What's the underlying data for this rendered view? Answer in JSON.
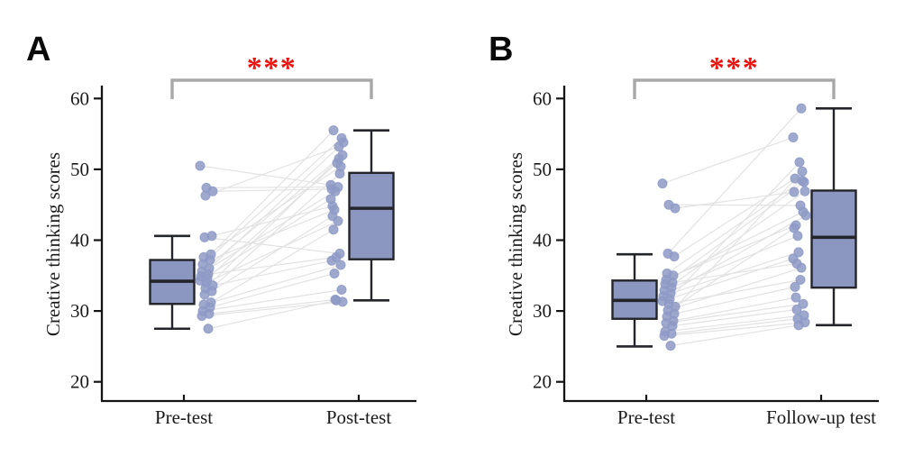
{
  "figure": {
    "background": "#ffffff",
    "panels": [
      {
        "label": "A"
      },
      {
        "label": "B"
      }
    ]
  },
  "colors": {
    "box_fill": "#8b97c1",
    "box_stroke": "#23252b",
    "median_stroke": "#23252b",
    "point_fill": "#8e9ac6",
    "pair_line": "#e2e2e2",
    "bracket": "#a8a8a8",
    "significance": "#ea1510",
    "axis": "#141414",
    "text": "#1a1a1a"
  },
  "chart_data": [
    {
      "type": "box",
      "panel": "A",
      "title": "",
      "ylabel": "Creative thinking scores",
      "xlabel": "",
      "ylim": [
        20,
        60
      ],
      "yticks": [
        20,
        30,
        40,
        50,
        60
      ],
      "grid": false,
      "legend": "none",
      "categories": [
        "Pre-test",
        "Post-test"
      ],
      "significance": {
        "label": "***",
        "between": [
          "Pre-test",
          "Post-test"
        ]
      },
      "boxes": [
        {
          "category": "Pre-test",
          "whisker_low": 27.5,
          "q1": 31.0,
          "median": 34.2,
          "q3": 37.2,
          "whisker_high": 40.6
        },
        {
          "category": "Post-test",
          "whisker_low": 31.5,
          "q1": 37.3,
          "median": 44.5,
          "q3": 49.5,
          "whisker_high": 55.5
        }
      ],
      "paired_points": [
        [
          50.5,
          47.8
        ],
        [
          47.4,
          47.5
        ],
        [
          46.9,
          47.2
        ],
        [
          46.3,
          53.2
        ],
        [
          40.6,
          44.8
        ],
        [
          40.4,
          38.1
        ],
        [
          38.0,
          55.5
        ],
        [
          37.6,
          50.4
        ],
        [
          37.2,
          44.3
        ],
        [
          36.6,
          54.4
        ],
        [
          36.0,
          46.9
        ],
        [
          35.6,
          52.0
        ],
        [
          35.2,
          37.6
        ],
        [
          34.9,
          53.8
        ],
        [
          34.6,
          50.9
        ],
        [
          34.3,
          45.8
        ],
        [
          34.0,
          42.7
        ],
        [
          33.6,
          37.1
        ],
        [
          33.2,
          51.5
        ],
        [
          32.8,
          43.4
        ],
        [
          32.3,
          49.4
        ],
        [
          31.2,
          41.5
        ],
        [
          30.9,
          36.5
        ],
        [
          30.5,
          35.3
        ],
        [
          30.0,
          33.0
        ],
        [
          29.6,
          31.6
        ],
        [
          29.3,
          31.3
        ],
        [
          27.5,
          31.5
        ]
      ]
    },
    {
      "type": "box",
      "panel": "B",
      "title": "",
      "ylabel": "Creative thinking scores",
      "xlabel": "",
      "ylim": [
        20,
        60
      ],
      "yticks": [
        20,
        30,
        40,
        50,
        60
      ],
      "grid": false,
      "legend": "none",
      "categories": [
        "Pre-test",
        "Follow-up test"
      ],
      "significance": {
        "label": "***",
        "between": [
          "Pre-test",
          "Follow-up test"
        ]
      },
      "boxes": [
        {
          "category": "Pre-test",
          "whisker_low": 25.0,
          "q1": 28.9,
          "median": 31.5,
          "q3": 34.3,
          "whisker_high": 38.0
        },
        {
          "category": "Follow-up test",
          "whisker_low": 28.0,
          "q1": 33.3,
          "median": 40.4,
          "q3": 47.0,
          "whisker_high": 58.6
        }
      ],
      "paired_points": [
        [
          48.0,
          54.5
        ],
        [
          45.0,
          44.9
        ],
        [
          44.5,
          46.8
        ],
        [
          38.1,
          58.6
        ],
        [
          37.7,
          48.7
        ],
        [
          35.3,
          48.4
        ],
        [
          35.0,
          42.1
        ],
        [
          34.4,
          44.0
        ],
        [
          34.0,
          36.7
        ],
        [
          33.8,
          48.2
        ],
        [
          33.3,
          40.6
        ],
        [
          32.9,
          46.9
        ],
        [
          32.5,
          38.3
        ],
        [
          32.1,
          43.5
        ],
        [
          31.7,
          51.0
        ],
        [
          31.4,
          37.4
        ],
        [
          31.0,
          34.4
        ],
        [
          30.6,
          41.7
        ],
        [
          30.1,
          36.1
        ],
        [
          29.6,
          33.4
        ],
        [
          29.2,
          49.7
        ],
        [
          28.6,
          31.9
        ],
        [
          28.3,
          31.0
        ],
        [
          27.9,
          30.2
        ],
        [
          27.1,
          29.4
        ],
        [
          26.8,
          28.9
        ],
        [
          26.5,
          28.4
        ],
        [
          25.1,
          28.0
        ]
      ]
    }
  ]
}
